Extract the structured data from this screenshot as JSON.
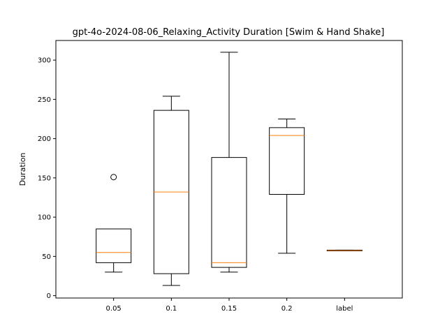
{
  "chart_data": {
    "type": "box",
    "title": "gpt-4o-2024-08-06_Relaxing_Activity Duration [Swim & Hand Shake]",
    "xlabel": "",
    "ylabel": "Duration",
    "categories": [
      "0.05",
      "0.1",
      "0.15",
      "0.2",
      "label"
    ],
    "ylim": [
      -3,
      325
    ],
    "yticks": [
      0,
      50,
      100,
      150,
      200,
      250,
      300
    ],
    "grid": false,
    "boxes": [
      {
        "category": "0.05",
        "whisker_low": 30,
        "q1": 42,
        "median": 55,
        "q3": 85,
        "whisker_high": 85,
        "outliers": [
          151
        ]
      },
      {
        "category": "0.1",
        "whisker_low": 13,
        "q1": 28,
        "median": 132,
        "q3": 236,
        "whisker_high": 254,
        "outliers": []
      },
      {
        "category": "0.15",
        "whisker_low": 30,
        "q1": 36,
        "median": 42,
        "q3": 176,
        "whisker_high": 310,
        "outliers": []
      },
      {
        "category": "0.2",
        "whisker_low": 54,
        "q1": 129,
        "median": 204,
        "q3": 214,
        "whisker_high": 225,
        "outliers": []
      },
      {
        "category": "label",
        "whisker_low": 57,
        "q1": 57,
        "median": 57.5,
        "q3": 58,
        "whisker_high": 58,
        "outliers": []
      }
    ],
    "colors": {
      "box": "#000000",
      "median": "#ff7f0e",
      "background": "#ffffff"
    }
  }
}
